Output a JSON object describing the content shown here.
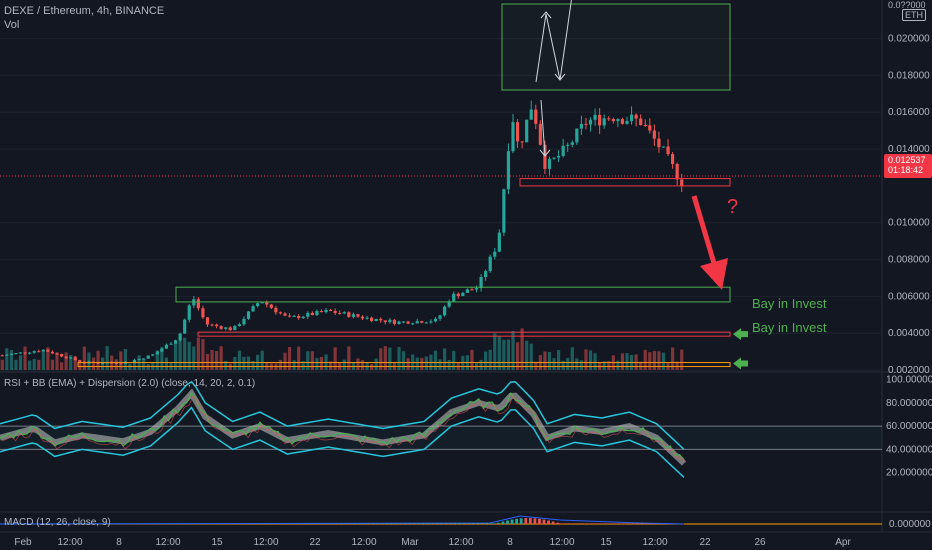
{
  "header": {
    "symbol_line": "DEXE / Ethereum, 4h, BINANCE",
    "vol_label": "Vol",
    "currency_badge": "ETH"
  },
  "price_axis": {
    "ticks": [
      "0.020000",
      "0.018000",
      "0.016000",
      "0.014000",
      "0.010000",
      "0.008000",
      "0.006000",
      "0.004000",
      "0.002000"
    ],
    "top_partial": "0.0??000",
    "current_price": "0.012537",
    "countdown": "01:18:42"
  },
  "annotations": {
    "buy_label_1": "Bay in Invest",
    "buy_label_2": "Bay in Invest",
    "question": "?"
  },
  "rsi_panel": {
    "title": "RSI + BB (EMA) + Dispersion (2.0) (close, 14, 20, 2, 0.1)",
    "ticks": [
      "100.000000",
      "80.000000",
      "60.000000",
      "40.000000",
      "20.000000"
    ]
  },
  "macd_panel": {
    "title": "MACD (12, 26, close, 9)",
    "tick": "0.000000"
  },
  "time_axis": {
    "labels": [
      "Feb",
      "12:00",
      "8",
      "12:00",
      "15",
      "12:00",
      "22",
      "12:00",
      "Mar",
      "12:00",
      "8",
      "12:00",
      "15",
      "12:00",
      "22",
      "26",
      "Apr"
    ]
  },
  "colors": {
    "background": "#131722",
    "up": "#26a69a",
    "down": "#ef5350",
    "box_green": "#4caf50",
    "zone_red": "#f23645",
    "zone_orange": "#ff9800",
    "arrow_green": "#4caf50",
    "rsi_band": "#26c6da",
    "rsi_line": "#4caf50"
  },
  "chart_data": {
    "type": "candlestick",
    "symbol": "DEXE / Ethereum",
    "timeframe": "4h",
    "exchange": "BINANCE",
    "last_price": 0.012537,
    "price_range": [
      0.0005,
      0.0215
    ],
    "path": [
      [
        0,
        0.0028
      ],
      [
        0.06,
        0.0031
      ],
      [
        0.12,
        0.0024
      ],
      [
        0.18,
        0.0024
      ],
      [
        0.22,
        0.0028
      ],
      [
        0.26,
        0.0038
      ],
      [
        0.28,
        0.006
      ],
      [
        0.3,
        0.0045
      ],
      [
        0.34,
        0.0042
      ],
      [
        0.38,
        0.0058
      ],
      [
        0.42,
        0.0048
      ],
      [
        0.48,
        0.0052
      ],
      [
        0.54,
        0.0048
      ],
      [
        0.58,
        0.0046
      ],
      [
        0.64,
        0.0047
      ],
      [
        0.66,
        0.006
      ],
      [
        0.7,
        0.0065
      ],
      [
        0.73,
        0.009
      ],
      [
        0.75,
        0.016
      ],
      [
        0.76,
        0.014
      ],
      [
        0.78,
        0.0165
      ],
      [
        0.8,
        0.013
      ],
      [
        0.83,
        0.014
      ],
      [
        0.86,
        0.0155
      ],
      [
        0.9,
        0.0158
      ],
      [
        0.94,
        0.0155
      ],
      [
        0.97,
        0.014
      ],
      [
        1.0,
        0.0122
      ]
    ],
    "horizontal_levels": [
      {
        "price": 0.00395,
        "label": "Bay in Invest",
        "color": "zone_red"
      },
      {
        "price": 0.0023,
        "label": "Bay in Invest",
        "color": "zone_orange"
      },
      {
        "price": 0.01215,
        "color": "zone_red"
      },
      {
        "price": 0.006,
        "color": "box_green"
      }
    ],
    "rsi_range": [
      0,
      100
    ],
    "rsi_levels": [
      60,
      40
    ],
    "rsi_path": [
      [
        0,
        50
      ],
      [
        0.05,
        58
      ],
      [
        0.08,
        46
      ],
      [
        0.12,
        52
      ],
      [
        0.18,
        47
      ],
      [
        0.22,
        55
      ],
      [
        0.26,
        75
      ],
      [
        0.28,
        88
      ],
      [
        0.3,
        68
      ],
      [
        0.34,
        52
      ],
      [
        0.38,
        60
      ],
      [
        0.42,
        48
      ],
      [
        0.48,
        54
      ],
      [
        0.52,
        50
      ],
      [
        0.56,
        46
      ],
      [
        0.62,
        52
      ],
      [
        0.66,
        72
      ],
      [
        0.7,
        80
      ],
      [
        0.73,
        75
      ],
      [
        0.75,
        88
      ],
      [
        0.78,
        70
      ],
      [
        0.8,
        50
      ],
      [
        0.84,
        58
      ],
      [
        0.88,
        55
      ],
      [
        0.92,
        60
      ],
      [
        0.96,
        50
      ],
      [
        1.0,
        28
      ]
    ]
  }
}
